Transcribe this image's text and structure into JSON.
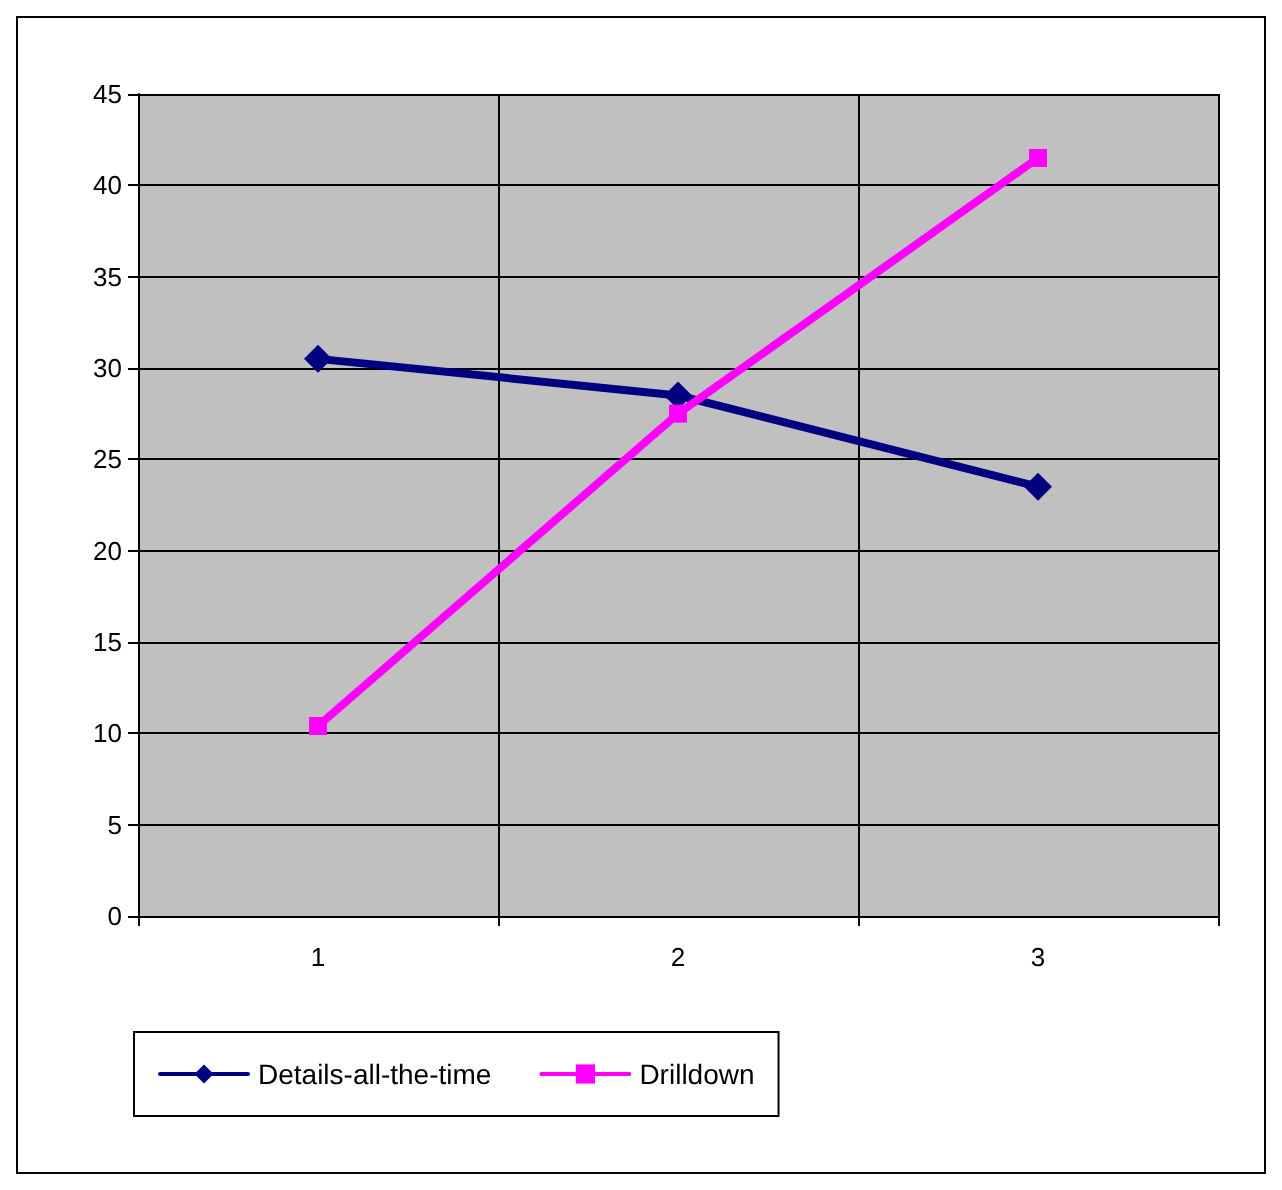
{
  "chart_data": {
    "type": "line",
    "categories": [
      "1",
      "2",
      "3"
    ],
    "series": [
      {
        "name": "Details-all-the-time",
        "color": "#000080",
        "marker": "diamond",
        "values": [
          30.5,
          28.5,
          23.5
        ]
      },
      {
        "name": "Drilldown",
        "color": "#ff00ff",
        "marker": "square",
        "values": [
          10.4,
          27.5,
          41.5
        ]
      }
    ],
    "ylim": [
      0,
      45
    ],
    "yticks": [
      0,
      5,
      10,
      15,
      20,
      25,
      30,
      35,
      40,
      45
    ],
    "grid": true,
    "legend": "bottom left",
    "line_style": "solid"
  }
}
